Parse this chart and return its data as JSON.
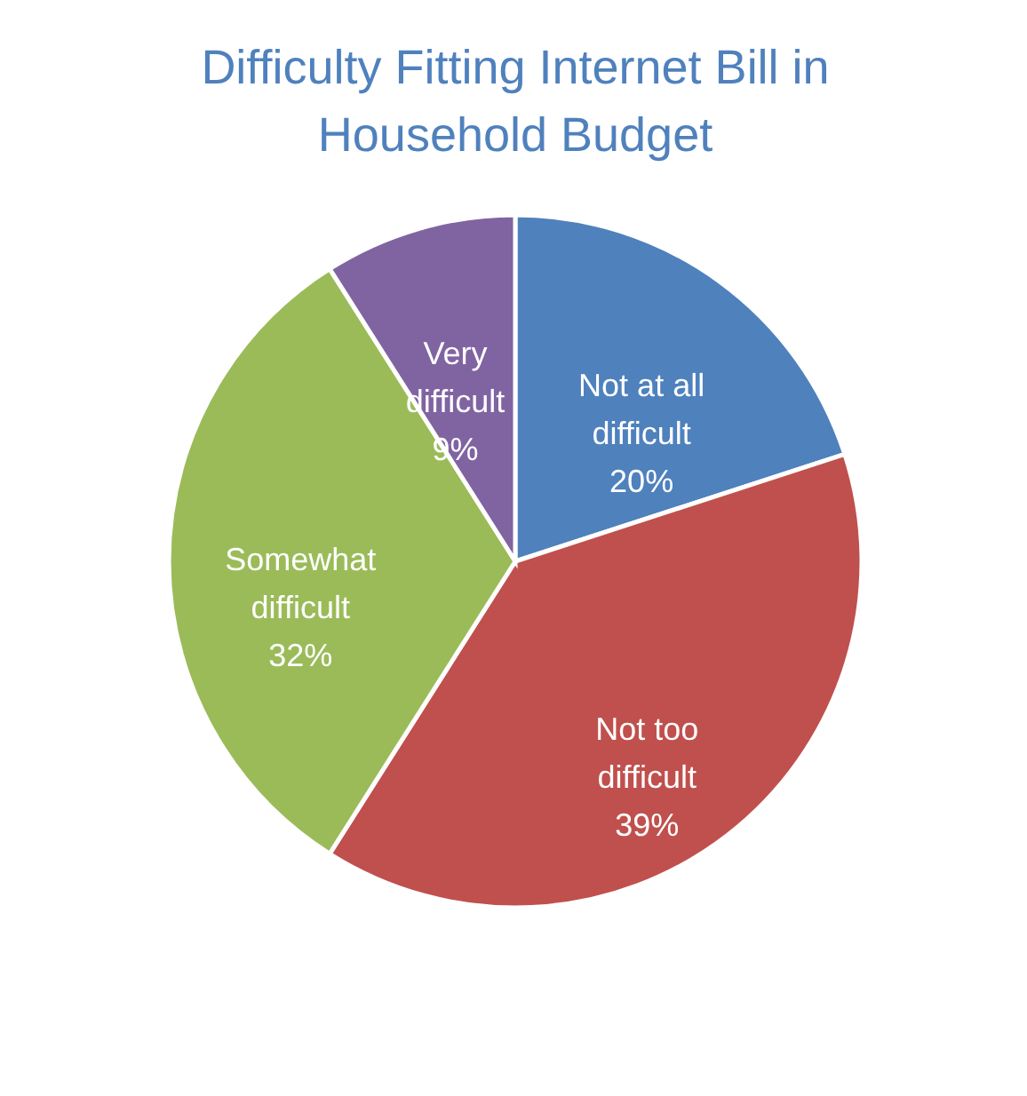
{
  "chart_data": {
    "type": "pie",
    "title": "Difficulty Fitting Internet Bill in Household Budget",
    "categories": [
      "Not at all difficult",
      "Not too difficult",
      "Somewhat difficult",
      "Very difficult"
    ],
    "values": [
      20,
      39,
      32,
      9
    ],
    "value_labels": [
      "20%",
      "39%",
      "32%",
      "9%"
    ],
    "colors": [
      "#4f81bd",
      "#c0504d",
      "#9bbb59",
      "#8064a2"
    ],
    "legend": false
  }
}
